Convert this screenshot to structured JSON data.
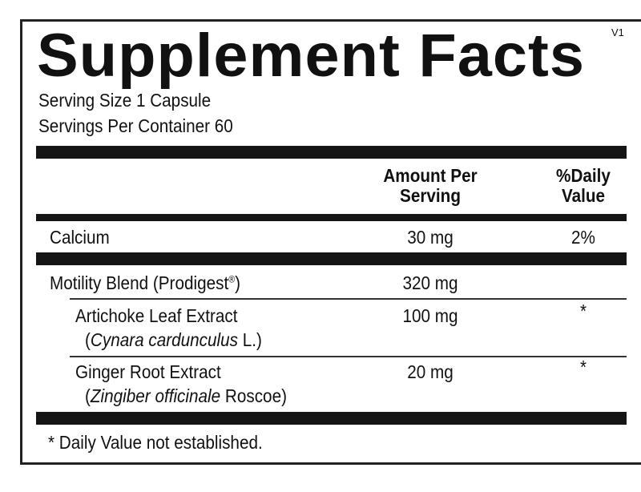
{
  "title": "Supplement Facts",
  "version": "V1",
  "serving_size": "Serving Size  1 Capsule",
  "servings_per_container": "Servings Per Container  60",
  "columns": {
    "amount": [
      "Amount Per",
      "Serving"
    ],
    "daily_value": [
      "%Daily",
      "Value"
    ]
  },
  "rows": [
    {
      "name": "Calcium",
      "amount": "30 mg",
      "dv": "2%"
    },
    {
      "name": "Motility Blend (Prodigest",
      "reg": "®",
      "name_end": ")",
      "amount": "320 mg",
      "dv": ""
    },
    {
      "name": "Artichoke Leaf Extract",
      "latin": "Cynara cardunculus",
      "latin_suffix": " L.)",
      "amount": "100 mg",
      "dv": "*"
    },
    {
      "name": "Ginger Root Extract",
      "latin": "Zingiber officinale",
      "latin_suffix": " Roscoe)",
      "amount": "20 mg",
      "dv": "*"
    }
  ],
  "footnote": "* Daily Value not established."
}
